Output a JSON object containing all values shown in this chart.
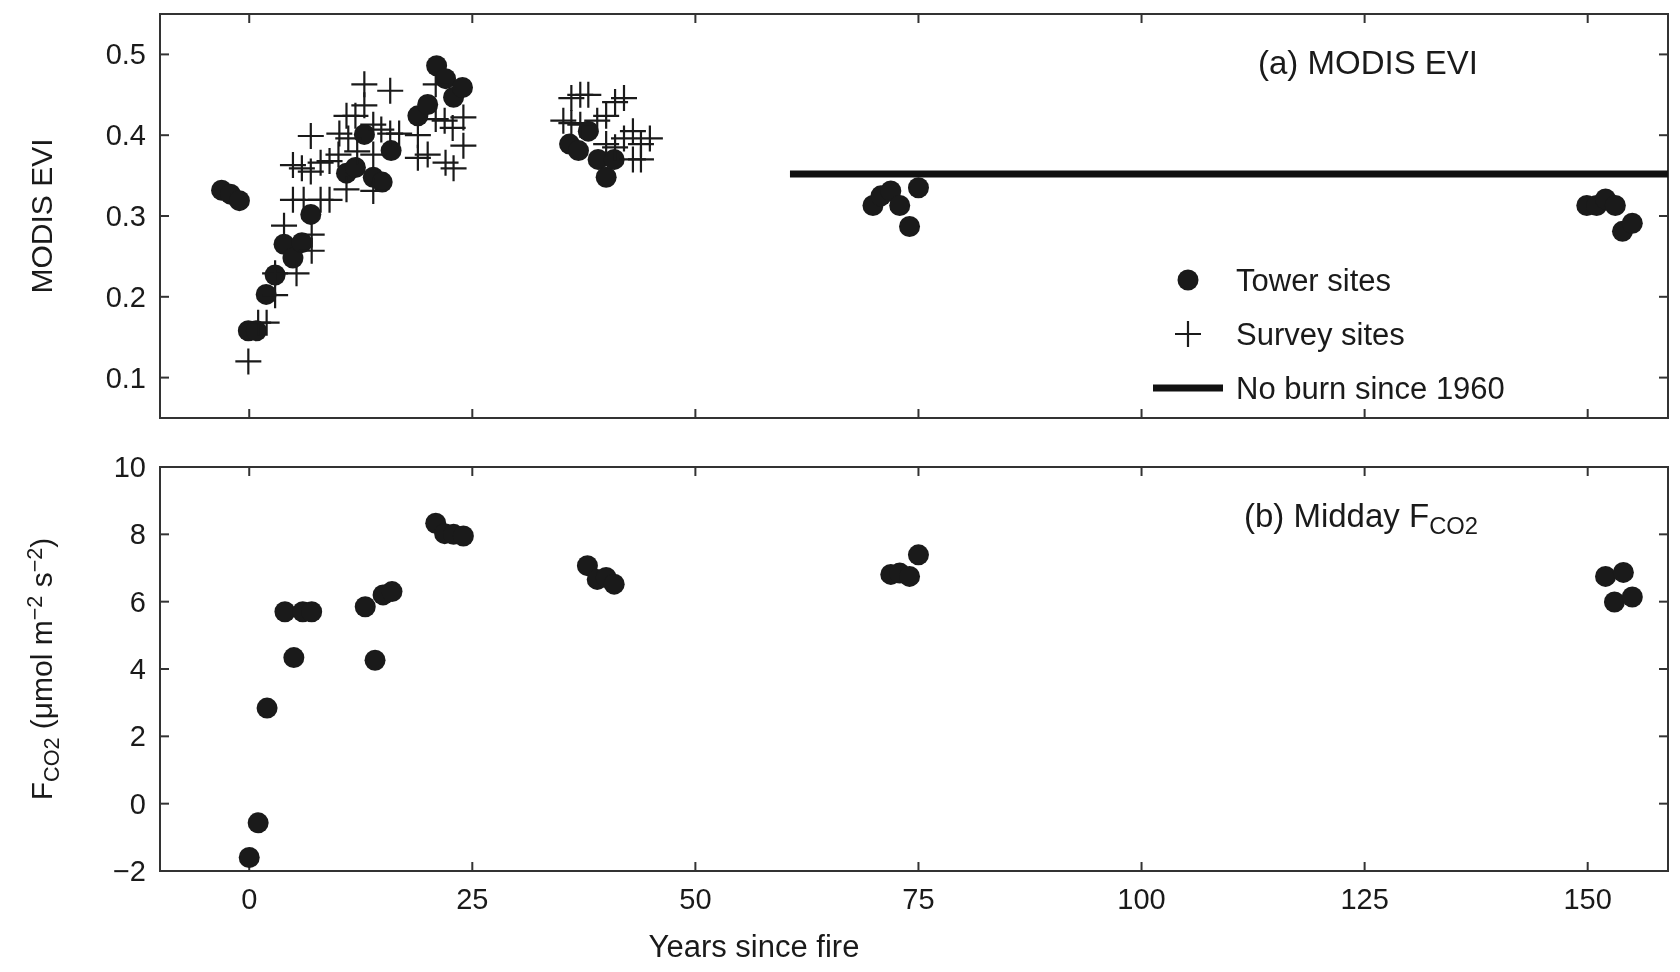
{
  "chart_data": [
    {
      "type": "scatter",
      "title": "(a) MODIS EVI",
      "ylabel": "MODIS EVI",
      "xlim": [
        -10,
        159
      ],
      "xticks": [
        0,
        25,
        50,
        75,
        100,
        125,
        150
      ],
      "ylim": [
        0.05,
        0.55
      ],
      "yticks": [
        0.1,
        0.2,
        0.3,
        0.4,
        0.5
      ],
      "tick_labels": "y",
      "grid": false,
      "legend": "bottom right",
      "series": [
        {
          "name": "Tower sites",
          "type": "scatter",
          "marker": "circle",
          "color": "#1a1a1a",
          "x": [
            -3.1,
            -2.1,
            -1.1,
            -0.1,
            0.8,
            1.9,
            2.9,
            3.9,
            4.9,
            5.9,
            6.9,
            10.9,
            11.9,
            12.9,
            13.9,
            14.9,
            15.9,
            18.9,
            20,
            21,
            22,
            22.9,
            23.9,
            35.9,
            36.9,
            38,
            39.1,
            40,
            40.9,
            69.9,
            70.8,
            71.9,
            72.9,
            74,
            75,
            149.9,
            151,
            152,
            153.1,
            153.9,
            155
          ],
          "values": [
            0.332,
            0.327,
            0.319,
            0.158,
            0.158,
            0.203,
            0.227,
            0.265,
            0.248,
            0.267,
            0.302,
            0.353,
            0.36,
            0.401,
            0.348,
            0.342,
            0.381,
            0.424,
            0.438,
            0.486,
            0.47,
            0.447,
            0.459,
            0.389,
            0.381,
            0.405,
            0.37,
            0.348,
            0.37,
            0.313,
            0.325,
            0.331,
            0.313,
            0.287,
            0.335,
            0.313,
            0.313,
            0.321,
            0.313,
            0.281,
            0.291
          ]
        },
        {
          "name": "Survey sites",
          "type": "scatter",
          "marker": "cross",
          "color": "#1a1a1a",
          "x": [
            -0.1,
            1,
            1.95,
            2.9,
            2.9,
            5.3,
            7,
            7,
            3.9,
            4.9,
            6.1,
            8,
            9,
            4.9,
            5.9,
            6.9,
            6.9,
            8,
            9,
            10,
            10.9,
            10.9,
            11.9,
            12.9,
            12.9,
            13.9,
            14.8,
            13.9,
            15.8,
            15.8,
            16.8,
            18.9,
            18.9,
            20,
            20.9,
            20.9,
            21.9,
            22.8,
            22,
            22.9,
            24,
            24,
            12.1,
            11.1,
            10.1,
            13.9,
            36.1,
            37.1,
            38,
            35.2,
            36.1,
            37.1,
            40,
            41,
            42,
            43,
            43.9,
            44.9,
            43,
            43.9,
            40,
            41,
            42,
            39
          ],
          "values": [
            0.12,
            0.168,
            0.168,
            0.202,
            0.229,
            0.229,
            0.257,
            0.277,
            0.288,
            0.32,
            0.32,
            0.32,
            0.32,
            0.363,
            0.359,
            0.355,
            0.399,
            0.366,
            0.368,
            0.376,
            0.333,
            0.424,
            0.424,
            0.463,
            0.437,
            0.413,
            0.407,
            0.376,
            0.455,
            0.402,
            0.402,
            0.4,
            0.372,
            0.376,
            0.463,
            0.42,
            0.418,
            0.409,
            0.366,
            0.359,
            0.387,
            0.422,
            0.38,
            0.396,
            0.402,
            0.331,
            0.446,
            0.45,
            0.45,
            0.418,
            0.415,
            0.413,
            0.424,
            0.441,
            0.446,
            0.405,
            0.389,
            0.396,
            0.37,
            0.37,
            0.389,
            0.385,
            0.396,
            0.418
          ]
        },
        {
          "name": "No burn since 1960",
          "type": "line",
          "marker": "none",
          "line_style": "solid",
          "color": "#111111",
          "x": [
            60.6,
            159
          ],
          "values": [
            0.352,
            0.352
          ]
        }
      ]
    },
    {
      "type": "scatter",
      "title": "(b) Midday F$_{CO2}$",
      "xlabel": "Years since fire",
      "ylabel": "F$_{CO2}$ (μmol m$^{−2}$ s$^{−2}$)",
      "xlim": [
        -10,
        159
      ],
      "xticks": [
        0,
        25,
        50,
        75,
        100,
        125,
        150
      ],
      "ylim": [
        -2,
        10
      ],
      "yticks": [
        {
          "value": -2,
          "label": "−2"
        },
        0,
        2,
        4,
        6,
        8,
        10
      ],
      "grid": false,
      "legend": false,
      "series": [
        {
          "type": "scatter",
          "marker": "circle",
          "color": "#1a1a1a",
          "x": [
            0,
            1,
            2,
            4,
            5,
            6,
            7,
            13,
            14.1,
            15,
            16,
            20.9,
            21.9,
            22.9,
            24,
            37.9,
            39,
            40,
            40.9,
            71.9,
            72.9,
            74,
            75,
            152,
            154,
            153,
            155
          ],
          "values": [
            -1.6,
            -0.57,
            2.84,
            5.7,
            4.34,
            5.7,
            5.7,
            5.85,
            4.26,
            6.2,
            6.3,
            8.33,
            8.02,
            8.0,
            7.95,
            7.07,
            6.66,
            6.72,
            6.52,
            6.81,
            6.85,
            6.75,
            7.39,
            6.75,
            6.87,
            5.99,
            6.14
          ]
        }
      ]
    }
  ]
}
